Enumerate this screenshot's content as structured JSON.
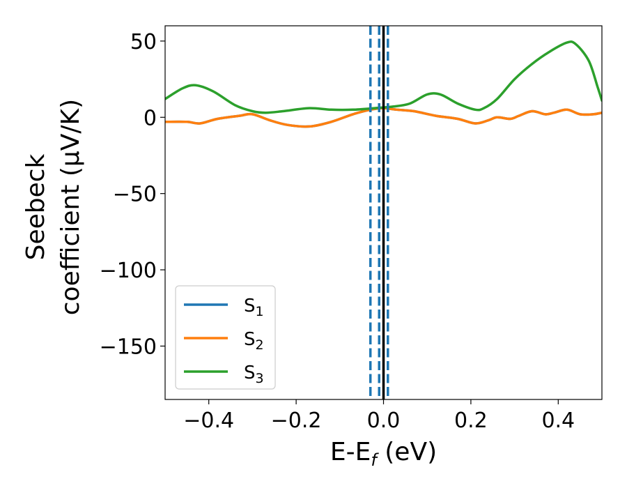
{
  "chart_data": {
    "type": "line",
    "title": "",
    "xlabel": {
      "main": "E-E",
      "sub": "f",
      "suffix": " (eV)"
    },
    "ylabel": {
      "line1": "Seebeck",
      "line2": "coefficient  (μV/K)"
    },
    "xlim": [
      -0.5,
      0.5
    ],
    "ylim": [
      -185,
      60
    ],
    "x_ticks": [
      -0.4,
      -0.2,
      0.0,
      0.2,
      0.4
    ],
    "x_tick_labels": [
      "−0.4",
      "−0.2",
      "0.0",
      "0.2",
      "0.4"
    ],
    "y_ticks": [
      50,
      0,
      -50,
      -100,
      -150
    ],
    "y_tick_labels": [
      "50",
      "0",
      "−50",
      "−100",
      "−150"
    ],
    "grid": false,
    "legend_position": "lower-left",
    "series": [
      {
        "name": "S",
        "sub": "1",
        "color": "#1f77b4",
        "x": [
          -0.5,
          -0.45,
          -0.42,
          -0.38,
          -0.33,
          -0.3,
          -0.26,
          -0.22,
          -0.17,
          -0.12,
          -0.07,
          -0.03,
          0.0,
          0.03,
          0.07,
          0.12,
          0.17,
          0.21,
          0.24,
          0.26,
          0.29,
          0.31,
          0.34,
          0.37,
          0.39,
          0.42,
          0.45,
          0.48,
          0.5
        ],
        "y": [
          -3,
          -3,
          -4,
          -1,
          1,
          2,
          -2,
          -5,
          -6,
          -3,
          2,
          5,
          6,
          5,
          4,
          1,
          -1,
          -4,
          -2,
          0,
          -1,
          1,
          4,
          2,
          3,
          5,
          2,
          2,
          3
        ]
      },
      {
        "name": "S",
        "sub": "2",
        "color": "#ff7f0e",
        "x": [
          -0.5,
          -0.45,
          -0.42,
          -0.38,
          -0.33,
          -0.3,
          -0.26,
          -0.22,
          -0.17,
          -0.12,
          -0.07,
          -0.03,
          0.0,
          0.03,
          0.07,
          0.12,
          0.17,
          0.21,
          0.24,
          0.26,
          0.29,
          0.31,
          0.34,
          0.37,
          0.39,
          0.42,
          0.45,
          0.48,
          0.5
        ],
        "y": [
          -3,
          -3,
          -4,
          -1,
          1,
          2,
          -2,
          -5,
          -6,
          -3,
          2,
          5,
          6,
          5,
          4,
          1,
          -1,
          -4,
          -2,
          0,
          -1,
          1,
          4,
          2,
          3,
          5,
          2,
          2,
          3
        ]
      },
      {
        "name": "S",
        "sub": "3",
        "color": "#2ca02c",
        "x": [
          -0.5,
          -0.46,
          -0.43,
          -0.39,
          -0.34,
          -0.3,
          -0.27,
          -0.23,
          -0.17,
          -0.12,
          -0.07,
          -0.02,
          0.02,
          0.06,
          0.1,
          0.13,
          0.17,
          0.21,
          0.23,
          0.26,
          0.3,
          0.34,
          0.38,
          0.42,
          0.44,
          0.47,
          0.49,
          0.5
        ],
        "y": [
          12,
          19,
          21,
          17,
          8,
          4,
          3,
          4,
          6,
          5,
          5,
          6,
          7,
          9,
          15,
          15,
          9,
          5,
          6,
          12,
          25,
          35,
          43,
          49,
          48,
          37,
          20,
          11
        ]
      }
    ],
    "vlines": [
      {
        "x": -0.03,
        "style": "dashed",
        "color": "#1f77b4"
      },
      {
        "x": -0.01,
        "style": "dashed",
        "color": "#1f77b4"
      },
      {
        "x": 0.01,
        "style": "dashed",
        "color": "#1f77b4"
      },
      {
        "x": 0.0,
        "style": "solid",
        "color": "#000000"
      }
    ]
  }
}
